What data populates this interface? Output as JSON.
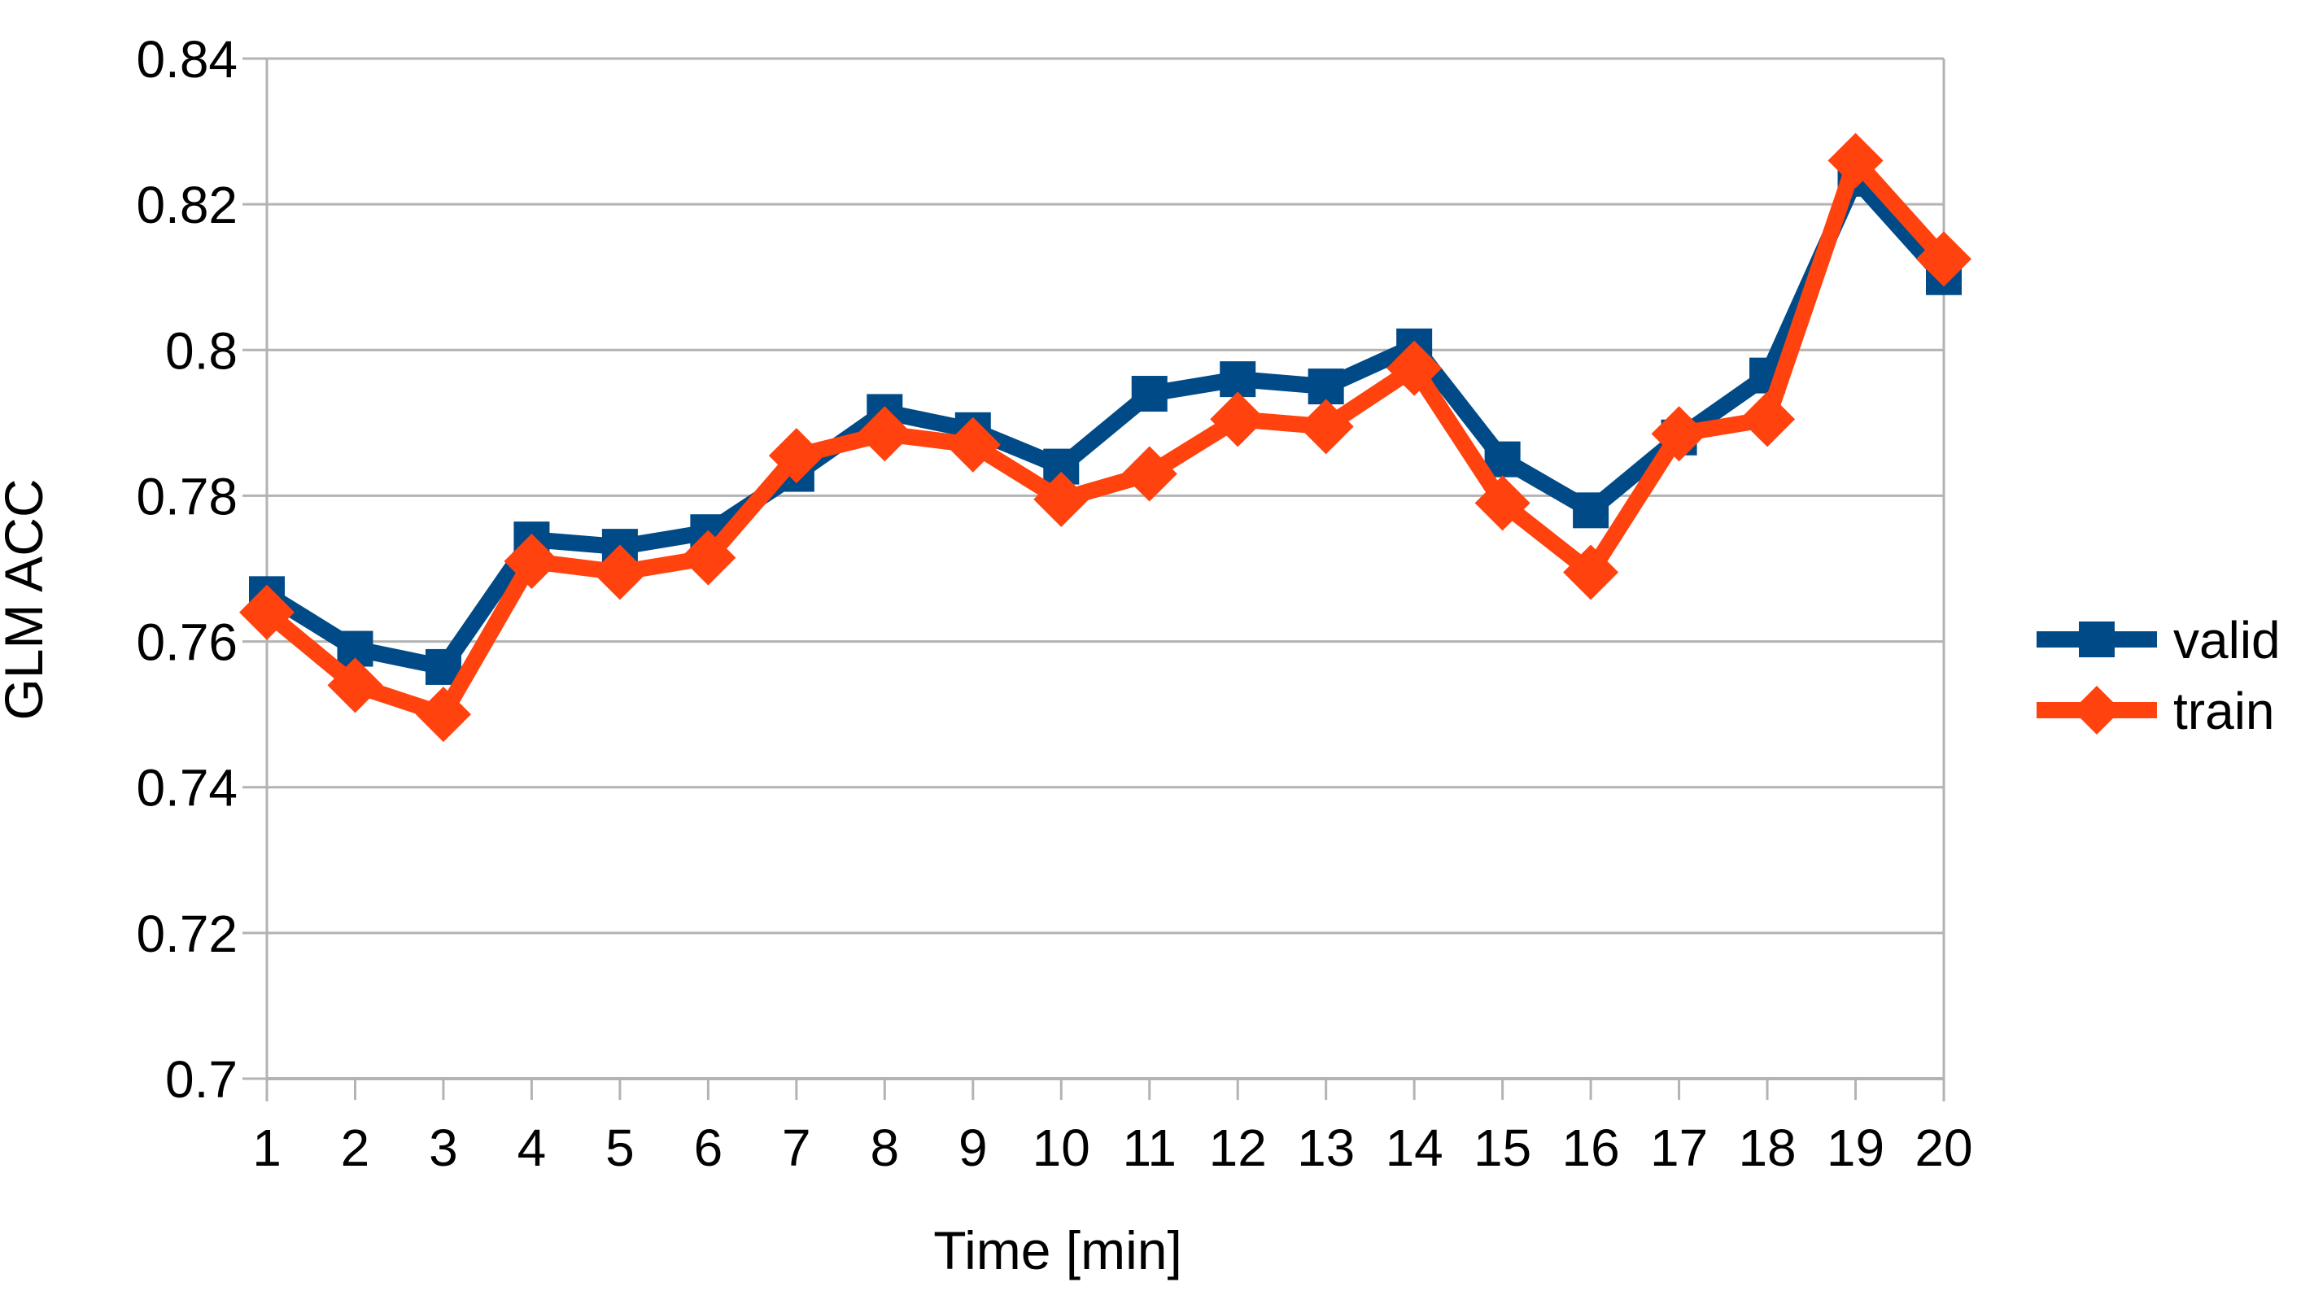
{
  "chart_data": {
    "type": "line",
    "title": "",
    "xlabel": "Time [min]",
    "ylabel": "GLM ACC",
    "x": [
      1,
      2,
      3,
      4,
      5,
      6,
      7,
      8,
      9,
      10,
      11,
      12,
      13,
      14,
      15,
      16,
      17,
      18,
      19,
      20
    ],
    "series": [
      {
        "name": "valid",
        "color": "#004B87",
        "marker": "square",
        "values": [
          0.7665,
          0.759,
          0.7565,
          0.774,
          0.773,
          0.775,
          0.783,
          0.7915,
          0.789,
          0.784,
          0.794,
          0.796,
          0.795,
          0.8005,
          0.785,
          0.778,
          0.788,
          0.7965,
          0.8235,
          0.81
        ]
      },
      {
        "name": "train",
        "color": "#FF420E",
        "marker": "diamond",
        "values": [
          0.764,
          0.754,
          0.75,
          0.771,
          0.7695,
          0.7715,
          0.7855,
          0.7885,
          0.787,
          0.7795,
          0.783,
          0.7905,
          0.7895,
          0.7975,
          0.779,
          0.7695,
          0.7885,
          0.7905,
          0.826,
          0.8125
        ]
      }
    ],
    "ylim": [
      0.7,
      0.84
    ],
    "y_ticks": [
      0.7,
      0.72,
      0.74,
      0.76,
      0.78,
      0.8,
      0.82,
      0.84
    ],
    "y_tick_labels": [
      "0.7",
      "0.72",
      "0.74",
      "0.76",
      "0.78",
      "0.8",
      "0.82",
      "0.84"
    ],
    "grid": "horizontal",
    "legend_position": "right"
  },
  "colors": {
    "grid": "#b3b3b3",
    "axis": "#b3b3b3",
    "text": "#000000",
    "background": "#ffffff"
  }
}
